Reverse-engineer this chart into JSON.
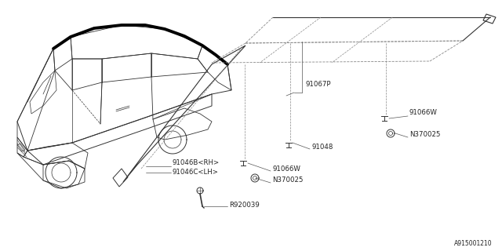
{
  "bg_color": "#ffffff",
  "diagram_id": "A915001210",
  "label_texts": {
    "91067P": "91067P",
    "91066W_top": "91066W",
    "N370025_top": "N370025",
    "91048": "91048",
    "91046B_RH": "91046B<RH>",
    "91046C_LH": "91046C<LH>",
    "91066W_bot": "91066W",
    "N370025_bot": "N370025",
    "R920039": "R920039",
    "diagram_code": "A915001210"
  }
}
